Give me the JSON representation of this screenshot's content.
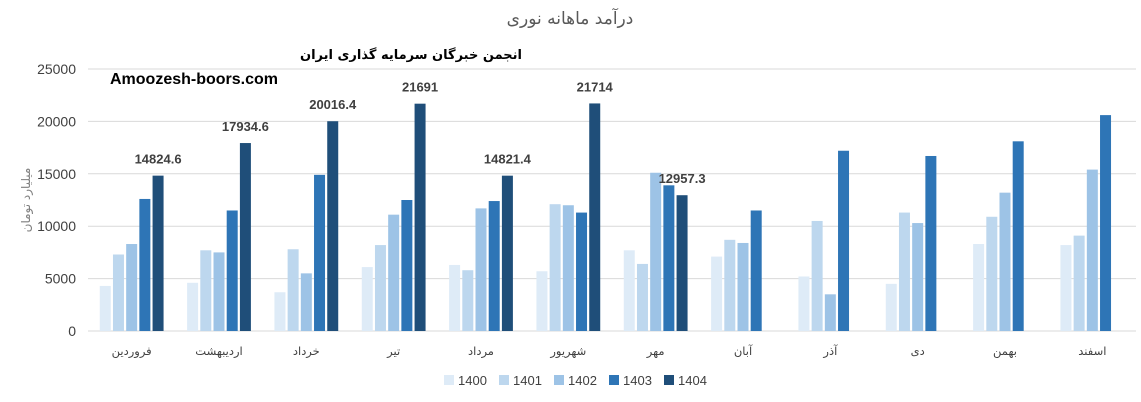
{
  "watermark": {
    "line1": "انجمن خبرگان سرمایه گذاری ایران",
    "line2": "Amoozesh-boors.com"
  },
  "chart_data": {
    "type": "bar",
    "title": "درآمد ماهانه نوری",
    "ylabel": "میلیارد تومان",
    "xlabel": "",
    "ylim": [
      0,
      25000
    ],
    "yticks": [
      0,
      5000,
      10000,
      15000,
      20000,
      25000
    ],
    "grid": true,
    "legend_position": "bottom",
    "categories": [
      "فروردین",
      "اردیبهشت",
      "خرداد",
      "تیر",
      "مرداد",
      "شهریور",
      "مهر",
      "آبان",
      "آذر",
      "دی",
      "بهمن",
      "اسفند"
    ],
    "series": [
      {
        "name": "1400",
        "color": "#deebf7",
        "values": [
          4300,
          4600,
          3700,
          6100,
          6300,
          5700,
          7700,
          7100,
          5200,
          4500,
          8300,
          8200
        ]
      },
      {
        "name": "1401",
        "color": "#bdd7ee",
        "values": [
          7300,
          7700,
          7800,
          8200,
          5800,
          12100,
          6400,
          8700,
          10500,
          11300,
          10900,
          9100
        ]
      },
      {
        "name": "1402",
        "color": "#9dc3e6",
        "values": [
          8300,
          7500,
          5500,
          11100,
          11700,
          12000,
          15100,
          8400,
          3500,
          10300,
          13200,
          15400
        ]
      },
      {
        "name": "1403",
        "color": "#2e75b6",
        "values": [
          12600,
          11500,
          14900,
          12500,
          12400,
          11300,
          13900,
          11500,
          17200,
          16700,
          18100,
          20600
        ]
      },
      {
        "name": "1404",
        "color": "#1f4e79",
        "values": [
          14824.6,
          17934.6,
          20016.4,
          21691,
          14821.4,
          21714,
          12957.3,
          null,
          null,
          null,
          null,
          null
        ],
        "labels": [
          "14824.6",
          "17934.6",
          "20016.4",
          "21691",
          "14821.4",
          "21714",
          "12957.3",
          null,
          null,
          null,
          null,
          null
        ]
      }
    ]
  }
}
